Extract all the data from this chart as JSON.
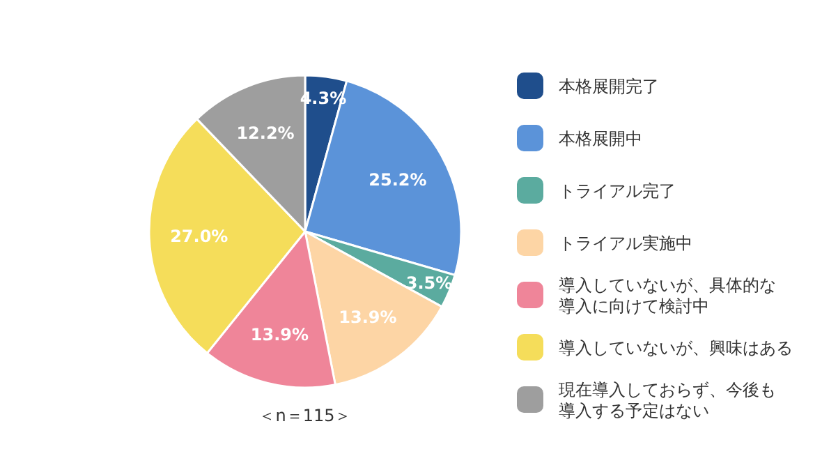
{
  "chart_data": {
    "type": "pie",
    "categories": [
      "本格展開完了",
      "本格展開中",
      "トライアル完了",
      "トライアル実施中",
      "導入していないが、具体的な導入に向けて検討中",
      "導入していないが、興味はある",
      "現在導入しておらず、今後も導入する予定はない"
    ],
    "values": [
      4.3,
      25.2,
      3.5,
      13.9,
      13.9,
      27.0,
      12.2
    ],
    "colors": [
      "#1f4e8c",
      "#5b93d9",
      "#5bab9f",
      "#fdd5a5",
      "#ef8599",
      "#f5dd5a",
      "#9e9e9e"
    ],
    "value_labels": [
      "4.3%",
      "25.2%",
      "3.5%",
      "13.9%",
      "13.9%",
      "27.0%",
      "12.2%"
    ],
    "legend": "right",
    "annotations": [
      "＜n＝115＞"
    ]
  }
}
